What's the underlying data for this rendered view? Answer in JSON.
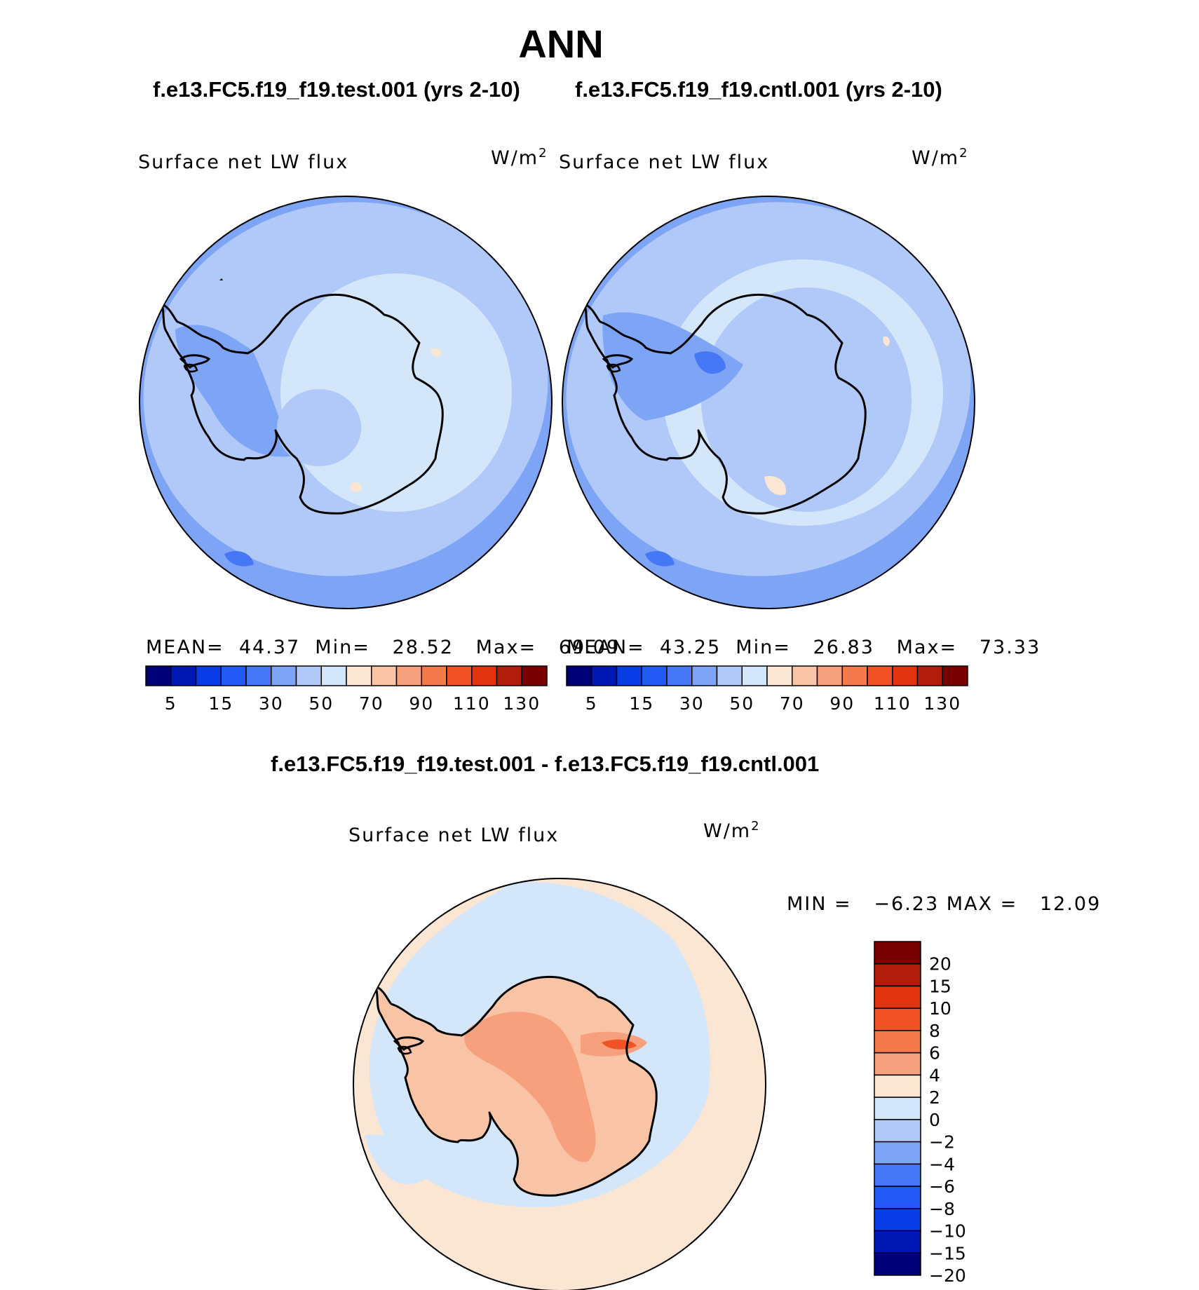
{
  "title": "ANN",
  "panels": [
    {
      "case": "f.e13.FC5.f19_f19.test.001 (yrs 2-10)",
      "variable": "Surface net LW flux",
      "units": "W/m",
      "units_exp": "2",
      "stats": {
        "mean_label": "MEAN=",
        "mean": "44.37",
        "min_label": "Min=",
        "min": "28.52",
        "max_label": "Max=",
        "max": "69.09"
      }
    },
    {
      "case": "f.e13.FC5.f19_f19.cntl.001 (yrs 2-10)",
      "variable": "Surface net LW flux",
      "units": "W/m",
      "units_exp": "2",
      "stats": {
        "mean_label": "MEAN=",
        "mean": "43.25",
        "min_label": "Min=",
        "min": "26.83",
        "max_label": "Max=",
        "max": "73.33"
      }
    }
  ],
  "diff_panel": {
    "title": "f.e13.FC5.f19_f19.test.001 - f.e13.FC5.f19_f19.cntl.001",
    "variable": "Surface net LW flux",
    "units": "W/m",
    "units_exp": "2",
    "stats_text": "MIN =   −6.23 MAX =   12.09"
  },
  "colorbar_main": {
    "colors": [
      "#000078",
      "#0019b4",
      "#0a3ce6",
      "#2359f5",
      "#4678f5",
      "#7ea4f5",
      "#b0c9f9",
      "#d4e6fa",
      "#fbe6d4",
      "#f9c3a6",
      "#f7a07d",
      "#f47a4e",
      "#f25326",
      "#e1330f",
      "#b21c0a",
      "#780000"
    ],
    "tick_labels": [
      "5",
      "15",
      "30",
      "50",
      "70",
      "90",
      "110",
      "130"
    ]
  },
  "colorbar_diff": {
    "colors": [
      "#780000",
      "#b21c0a",
      "#e1330f",
      "#f25326",
      "#f47a4e",
      "#f7a07d",
      "#fbe6d4",
      "#d4e6fa",
      "#b0c9f9",
      "#7ea4f5",
      "#4678f5",
      "#2359f5",
      "#0a3ce6",
      "#0019b4",
      "#000078"
    ],
    "tick_labels": [
      "20",
      "15",
      "10",
      "8",
      "6",
      "4",
      "2",
      "0",
      "−2",
      "−4",
      "−6",
      "−8",
      "−10",
      "−15",
      "−20"
    ]
  }
}
